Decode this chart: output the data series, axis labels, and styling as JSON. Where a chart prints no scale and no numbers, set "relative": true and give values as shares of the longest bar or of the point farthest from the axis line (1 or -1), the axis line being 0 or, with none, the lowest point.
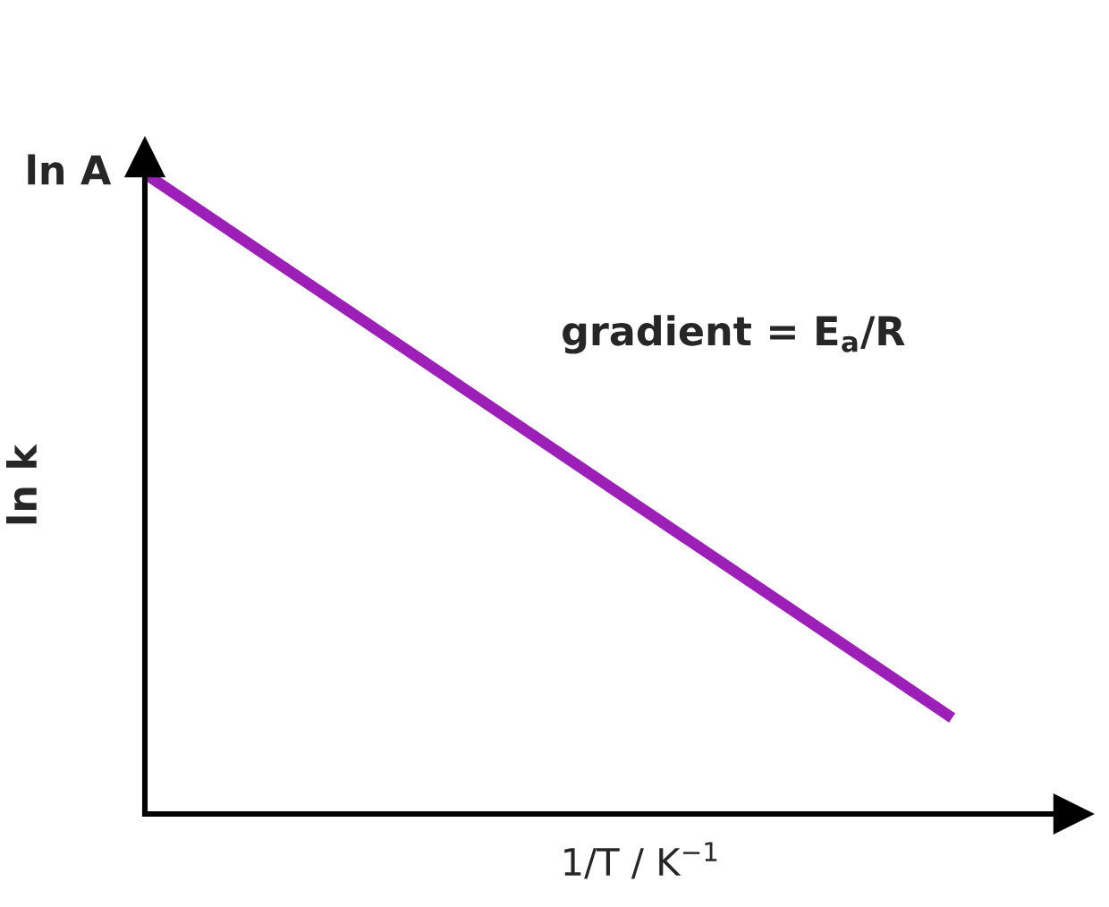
{
  "chart_data": {
    "type": "line",
    "relative": true,
    "categories": [
      null,
      null
    ],
    "values": [
      1,
      0.15
    ],
    "color": "#9c1fb8",
    "xlabel": "1/T / K$^{−1}$",
    "ylabel": "ln k",
    "annotations": [
      "ln A",
      "gradient = E$_{a}$/R"
    ]
  }
}
